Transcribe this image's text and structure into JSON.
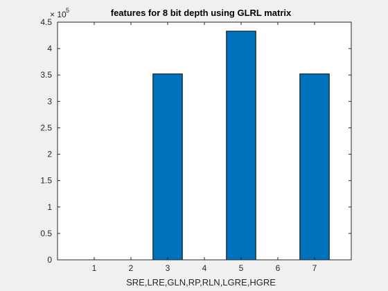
{
  "chart_data": {
    "type": "bar",
    "title": "features for 8 bit depth using GLRL matrix",
    "xlabel": "SRE,LRE,GLN,RP,RLN,LGRE,HGRE",
    "ylabel": "",
    "x": [
      3,
      5,
      7
    ],
    "values": [
      352000,
      433000,
      352000
    ],
    "xlim": [
      0,
      8
    ],
    "ylim": [
      0,
      450000
    ],
    "xticks": [
      1,
      2,
      3,
      4,
      5,
      6,
      7
    ],
    "xtick_labels": [
      "1",
      "2",
      "3",
      "4",
      "5",
      "6",
      "7"
    ],
    "yticks": [
      0,
      50000,
      100000,
      150000,
      200000,
      250000,
      300000,
      350000,
      400000,
      450000
    ],
    "ytick_labels": [
      "0",
      "0.5",
      "1",
      "1.5",
      "2",
      "2.5",
      "3",
      "3.5",
      "4",
      "4.5"
    ],
    "y_exponent_base": "× 10",
    "y_exponent_power": "5",
    "bar_color": "#0072BD",
    "edge_color": "#000000",
    "grid": false,
    "legend": "none"
  }
}
